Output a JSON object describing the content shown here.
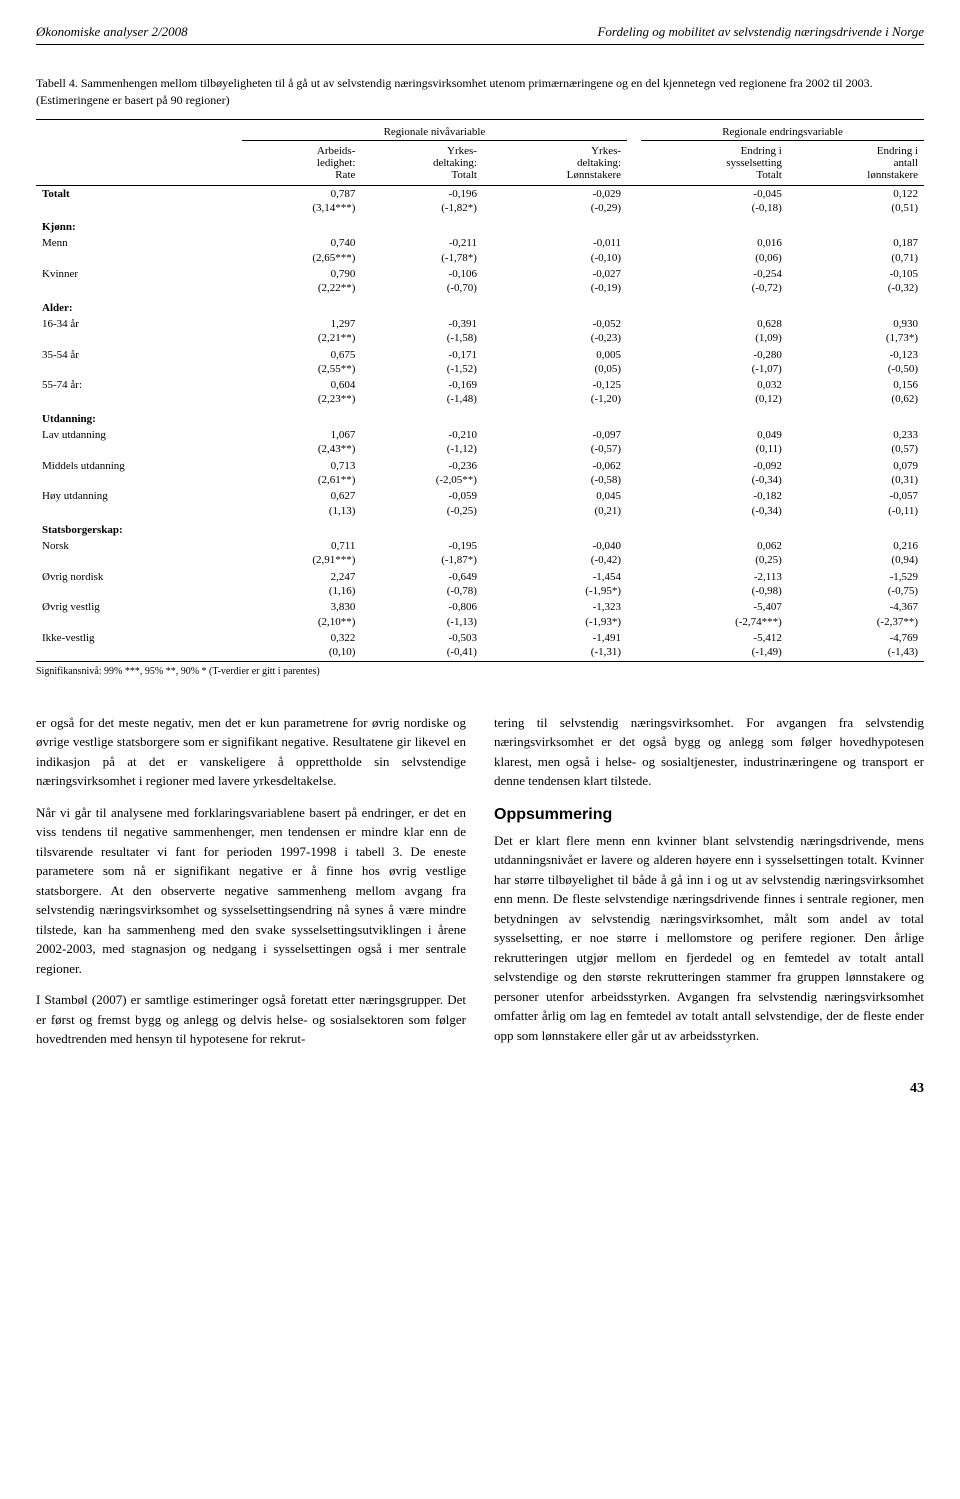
{
  "header": {
    "left": "Økonomiske analyser 2/2008",
    "right": "Fordeling og mobilitet av selvstendig næringsdrivende i Norge"
  },
  "table": {
    "title": "Tabell 4. Sammenhengen mellom tilbøyeligheten til å gå ut av selvstendig næringsvirksomhet utenom primærnæringene og en del kjennetegn ved regionene fra 2002 til 2003. (Estimeringene er basert på 90 regioner)",
    "group_headers": [
      "Regionale nivåvariable",
      "Regionale endringsvariable"
    ],
    "col_headers": [
      "",
      "Arbeids-\nledighet:\nRate",
      "Yrkes-\ndeltaking:\nTotalt",
      "Yrkes-\ndeltaking:\nLønnstakere",
      "Endring i\nsysselsetting\nTotalt",
      "Endring i\nantall\nlønnstakere"
    ],
    "rows": [
      {
        "type": "data",
        "label": "Totalt",
        "vals": [
          "0,787\n(3,14***)",
          "-0,196\n(-1,82*)",
          "-0,029\n(-0,29)",
          "-0,045\n(-0,18)",
          "0,122\n(0,51)"
        ],
        "topborder": true,
        "bold": true
      },
      {
        "type": "section",
        "label": "Kjønn:"
      },
      {
        "type": "data",
        "label": "Menn",
        "vals": [
          "0,740\n(2,65***)",
          "-0,211\n(-1,78*)",
          "-0,011\n(-0,10)",
          "0,016\n(0,06)",
          "0,187\n(0,71)"
        ]
      },
      {
        "type": "data",
        "label": "Kvinner",
        "vals": [
          "0,790\n(2,22**)",
          "-0,106\n(-0,70)",
          "-0,027\n(-0,19)",
          "-0,254\n(-0,72)",
          "-0,105\n(-0,32)"
        ]
      },
      {
        "type": "section",
        "label": "Alder:"
      },
      {
        "type": "data",
        "label": "16-34 år",
        "vals": [
          "1,297\n(2,21**)",
          "-0,391\n(-1,58)",
          "-0,052\n(-0,23)",
          "0,628\n(1,09)",
          "0,930\n(1,73*)"
        ]
      },
      {
        "type": "data",
        "label": "35-54 år",
        "vals": [
          "0,675\n(2,55**)",
          "-0,171\n(-1,52)",
          "0,005\n(0,05)",
          "-0,280\n(-1,07)",
          "-0,123\n(-0,50)"
        ]
      },
      {
        "type": "data",
        "label": "55-74 år:",
        "vals": [
          "0,604\n(2,23**)",
          "-0,169\n(-1,48)",
          "-0,125\n(-1,20)",
          "0,032\n(0,12)",
          "0,156\n(0,62)"
        ]
      },
      {
        "type": "section",
        "label": "Utdanning:"
      },
      {
        "type": "data",
        "label": "Lav utdanning",
        "vals": [
          "1,067\n(2,43**)",
          "-0,210\n(-1,12)",
          "-0,097\n(-0,57)",
          "0,049\n(0,11)",
          "0,233\n(0,57)"
        ]
      },
      {
        "type": "data",
        "label": "Middels utdanning",
        "vals": [
          "0,713\n(2,61**)",
          "-0,236\n(-2,05**)",
          "-0,062\n(-0,58)",
          "-0,092\n(-0,34)",
          "0,079\n(0,31)"
        ]
      },
      {
        "type": "data",
        "label": "Høy utdanning",
        "vals": [
          "0,627\n(1,13)",
          "-0,059\n(-0,25)",
          "0,045\n(0,21)",
          "-0,182\n(-0,34)",
          "-0,057\n(-0,11)"
        ]
      },
      {
        "type": "section",
        "label": "Statsborgerskap:"
      },
      {
        "type": "data",
        "label": "Norsk",
        "vals": [
          "0,711\n(2,91***)",
          "-0,195\n(-1,87*)",
          "-0,040\n(-0,42)",
          "0,062\n(0,25)",
          "0,216\n(0,94)"
        ]
      },
      {
        "type": "data",
        "label": "Øvrig nordisk",
        "vals": [
          "2,247\n(1,16)",
          "-0,649\n(-0,78)",
          "-1,454\n(-1,95*)",
          "-2,113\n(-0,98)",
          "-1,529\n(-0,75)"
        ]
      },
      {
        "type": "data",
        "label": "Øvrig vestlig",
        "vals": [
          "3,830\n(2,10**)",
          "-0,806\n(-1,13)",
          "-1,323\n(-1,93*)",
          "-5,407\n(-2,74***)",
          "-4,367\n(-2,37**)"
        ]
      },
      {
        "type": "data",
        "label": "Ikke-vestlig",
        "vals": [
          "0,322\n(0,10)",
          "-0,503\n(-0,41)",
          "-1,491\n(-1,31)",
          "-5,412\n(-1,49)",
          "-4,769\n(-1,43)"
        ],
        "bottomborder": true
      }
    ],
    "footnote": "Signifikansnivå: 99% ***, 95% **, 90% * (T-verdier er gitt i parentes)"
  },
  "text": {
    "left": {
      "p1": "er også for det meste negativ, men det er kun parametrene for øvrig nordiske og øvrige vestlige statsborgere som er signifikant negative. Resultatene gir likevel en indikasjon på at det er vanskeligere å opprettholde sin selvstendige næringsvirksomhet i regioner med lavere yrkesdeltakelse.",
      "p2": "Når vi går til analysene med forklaringsvariablene basert på endringer, er det en viss tendens til negative sammenhenger, men tendensen er mindre klar enn de tilsvarende resultater vi fant for perioden 1997-1998 i tabell 3. De eneste parametere som nå er signifikant negative er å finne hos øvrig vestlige statsborgere. At den observerte negative sammenheng mellom avgang fra selvstendig næringsvirksomhet og sysselsettingsendring nå synes å være mindre tilstede, kan ha sammenheng med den svake sysselsettingsutviklingen i årene 2002-2003, med stagnasjon og nedgang i sysselsettingen også i mer sentrale regioner.",
      "p3": "I Stambøl (2007) er samtlige estimeringer også foretatt etter næringsgrupper. Det er først og fremst bygg og anlegg og delvis helse- og sosialsektoren som følger hovedtrenden med hensyn til hypotesene for rekrut-"
    },
    "right": {
      "p1": "tering til selvstendig næringsvirksomhet. For avgangen fra selvstendig næringsvirksomhet er det også bygg og anlegg som følger hovedhypotesen klarest, men også i helse- og sosialtjenester, industrinæringene og transport er denne tendensen klart tilstede.",
      "heading": "Oppsummering",
      "p2": "Det er klart flere menn enn kvinner blant selvstendig næringsdrivende, mens utdanningsnivået er lavere og alderen høyere enn i sysselsettingen totalt. Kvinner har større tilbøyelighet til både å gå inn i og ut av selvstendig næringsvirksomhet enn menn. De fleste selvstendige næringsdrivende finnes i sentrale regioner, men betydningen av selvstendig næringsvirksomhet, målt som andel av total sysselsetting, er noe større i mellomstore og perifere regioner. Den årlige rekrutteringen utgjør mellom en fjerdedel og en femtedel av totalt antall selvstendige og den største rekrutteringen stammer fra gruppen lønnstakere og personer utenfor arbeidsstyrken. Avgangen fra selvstendig næringsvirksomhet omfatter årlig om lag en femtedel av totalt antall selvstendige, der de fleste ender opp som lønnstakere eller går ut av arbeidsstyrken."
    }
  },
  "page_number": "43"
}
